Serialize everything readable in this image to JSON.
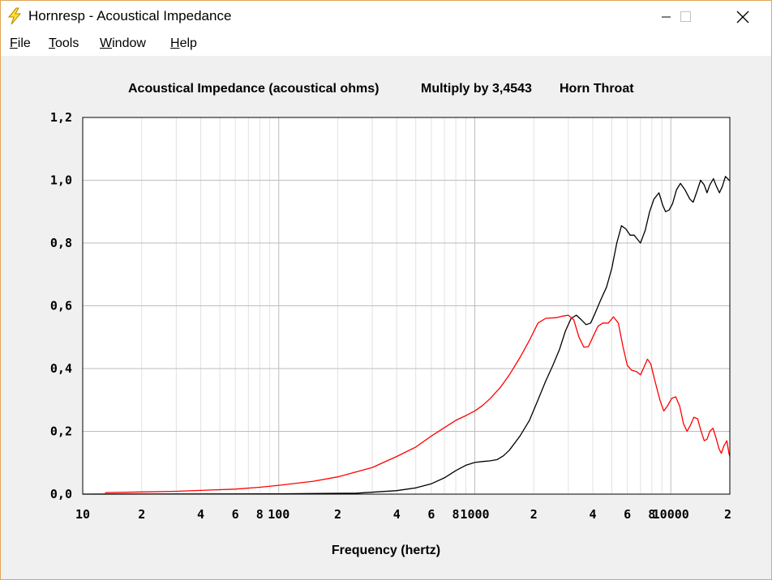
{
  "window": {
    "title": "Hornresp - Acoustical Impedance",
    "accent": "#e0a55a"
  },
  "menu": [
    {
      "label": "File",
      "accel": "F",
      "rest": "ile"
    },
    {
      "label": "Tools",
      "accel": "T",
      "rest": "ools"
    },
    {
      "label": "Window",
      "accel": "W",
      "rest": "indow"
    },
    {
      "label": "Help",
      "accel": "H",
      "rest": "elp"
    }
  ],
  "chart_data": {
    "type": "line",
    "title_parts": [
      "Acoustical Impedance (acoustical ohms)",
      "Multiply by 3,4543",
      "Horn Throat"
    ],
    "xlabel": "Frequency (hertz)",
    "ylabel": "",
    "x_scale": "log",
    "xlim": [
      10,
      20000
    ],
    "ylim": [
      0,
      1.2
    ],
    "y_ticks": [
      {
        "value": 0.0,
        "label": "0,0"
      },
      {
        "value": 0.2,
        "label": "0,2"
      },
      {
        "value": 0.4,
        "label": "0,4"
      },
      {
        "value": 0.6,
        "label": "0,6"
      },
      {
        "value": 0.8,
        "label": "0,8"
      },
      {
        "value": 1.0,
        "label": "1,0"
      },
      {
        "value": 1.2,
        "label": "1,2"
      }
    ],
    "x_ticks": [
      {
        "value": 10,
        "label": "10"
      },
      {
        "value": 20,
        "label": "2"
      },
      {
        "value": 40,
        "label": "4"
      },
      {
        "value": 60,
        "label": "6"
      },
      {
        "value": 80,
        "label": "8"
      },
      {
        "value": 100,
        "label": "100"
      },
      {
        "value": 200,
        "label": "2"
      },
      {
        "value": 400,
        "label": "4"
      },
      {
        "value": 600,
        "label": "6"
      },
      {
        "value": 800,
        "label": "8"
      },
      {
        "value": 1000,
        "label": "1000"
      },
      {
        "value": 2000,
        "label": "2"
      },
      {
        "value": 4000,
        "label": "4"
      },
      {
        "value": 6000,
        "label": "6"
      },
      {
        "value": 8000,
        "label": "8"
      },
      {
        "value": 10000,
        "label": "10000"
      },
      {
        "value": 20000,
        "label": "2"
      }
    ],
    "grid": true,
    "series": [
      {
        "color": "#000000",
        "points": [
          [
            10,
            0.0
          ],
          [
            100,
            0.001
          ],
          [
            250,
            0.003
          ],
          [
            400,
            0.011
          ],
          [
            500,
            0.02
          ],
          [
            600,
            0.033
          ],
          [
            700,
            0.052
          ],
          [
            800,
            0.075
          ],
          [
            900,
            0.092
          ],
          [
            1000,
            0.101
          ],
          [
            1100,
            0.104
          ],
          [
            1200,
            0.106
          ],
          [
            1300,
            0.11
          ],
          [
            1400,
            0.122
          ],
          [
            1500,
            0.14
          ],
          [
            1700,
            0.185
          ],
          [
            1900,
            0.235
          ],
          [
            2100,
            0.3
          ],
          [
            2300,
            0.36
          ],
          [
            2500,
            0.41
          ],
          [
            2700,
            0.46
          ],
          [
            2900,
            0.52
          ],
          [
            3100,
            0.56
          ],
          [
            3300,
            0.57
          ],
          [
            3500,
            0.555
          ],
          [
            3700,
            0.54
          ],
          [
            3900,
            0.545
          ],
          [
            4100,
            0.575
          ],
          [
            4400,
            0.62
          ],
          [
            4700,
            0.66
          ],
          [
            5000,
            0.72
          ],
          [
            5300,
            0.8
          ],
          [
            5600,
            0.855
          ],
          [
            5900,
            0.845
          ],
          [
            6200,
            0.825
          ],
          [
            6500,
            0.825
          ],
          [
            6800,
            0.81
          ],
          [
            7000,
            0.8
          ],
          [
            7400,
            0.84
          ],
          [
            7800,
            0.9
          ],
          [
            8200,
            0.94
          ],
          [
            8700,
            0.96
          ],
          [
            9100,
            0.92
          ],
          [
            9400,
            0.9
          ],
          [
            9800,
            0.905
          ],
          [
            10200,
            0.925
          ],
          [
            10700,
            0.97
          ],
          [
            11200,
            0.99
          ],
          [
            11800,
            0.97
          ],
          [
            12500,
            0.94
          ],
          [
            13000,
            0.93
          ],
          [
            13600,
            0.965
          ],
          [
            14200,
            1.0
          ],
          [
            14800,
            0.985
          ],
          [
            15300,
            0.96
          ],
          [
            15800,
            0.985
          ],
          [
            16500,
            1.005
          ],
          [
            17100,
            0.98
          ],
          [
            17700,
            0.96
          ],
          [
            18300,
            0.98
          ],
          [
            19000,
            1.012
          ],
          [
            19500,
            1.005
          ],
          [
            20000,
            0.998
          ]
        ]
      },
      {
        "color": "#ff0000",
        "points": [
          [
            13,
            0.005
          ],
          [
            20,
            0.007
          ],
          [
            30,
            0.009
          ],
          [
            40,
            0.012
          ],
          [
            60,
            0.016
          ],
          [
            80,
            0.022
          ],
          [
            100,
            0.028
          ],
          [
            150,
            0.041
          ],
          [
            200,
            0.055
          ],
          [
            300,
            0.085
          ],
          [
            400,
            0.12
          ],
          [
            500,
            0.15
          ],
          [
            600,
            0.185
          ],
          [
            700,
            0.212
          ],
          [
            800,
            0.235
          ],
          [
            900,
            0.25
          ],
          [
            1000,
            0.265
          ],
          [
            1100,
            0.283
          ],
          [
            1200,
            0.305
          ],
          [
            1350,
            0.34
          ],
          [
            1500,
            0.38
          ],
          [
            1700,
            0.435
          ],
          [
            1900,
            0.49
          ],
          [
            2100,
            0.545
          ],
          [
            2300,
            0.56
          ],
          [
            2600,
            0.562
          ],
          [
            2800,
            0.567
          ],
          [
            3000,
            0.57
          ],
          [
            3200,
            0.555
          ],
          [
            3400,
            0.5
          ],
          [
            3600,
            0.468
          ],
          [
            3800,
            0.47
          ],
          [
            4000,
            0.5
          ],
          [
            4250,
            0.535
          ],
          [
            4500,
            0.545
          ],
          [
            4800,
            0.545
          ],
          [
            5100,
            0.565
          ],
          [
            5400,
            0.545
          ],
          [
            5700,
            0.47
          ],
          [
            6000,
            0.41
          ],
          [
            6300,
            0.395
          ],
          [
            6700,
            0.39
          ],
          [
            7000,
            0.38
          ],
          [
            7300,
            0.405
          ],
          [
            7600,
            0.43
          ],
          [
            7900,
            0.415
          ],
          [
            8300,
            0.36
          ],
          [
            8800,
            0.3
          ],
          [
            9200,
            0.265
          ],
          [
            9600,
            0.28
          ],
          [
            10100,
            0.305
          ],
          [
            10600,
            0.31
          ],
          [
            11100,
            0.28
          ],
          [
            11600,
            0.225
          ],
          [
            12100,
            0.2
          ],
          [
            12600,
            0.22
          ],
          [
            13100,
            0.245
          ],
          [
            13700,
            0.24
          ],
          [
            14200,
            0.205
          ],
          [
            14800,
            0.17
          ],
          [
            15300,
            0.175
          ],
          [
            15800,
            0.2
          ],
          [
            16400,
            0.21
          ],
          [
            17000,
            0.18
          ],
          [
            17600,
            0.145
          ],
          [
            18100,
            0.13
          ],
          [
            18700,
            0.155
          ],
          [
            19300,
            0.17
          ],
          [
            19800,
            0.13
          ],
          [
            20000,
            0.12
          ]
        ]
      }
    ]
  }
}
